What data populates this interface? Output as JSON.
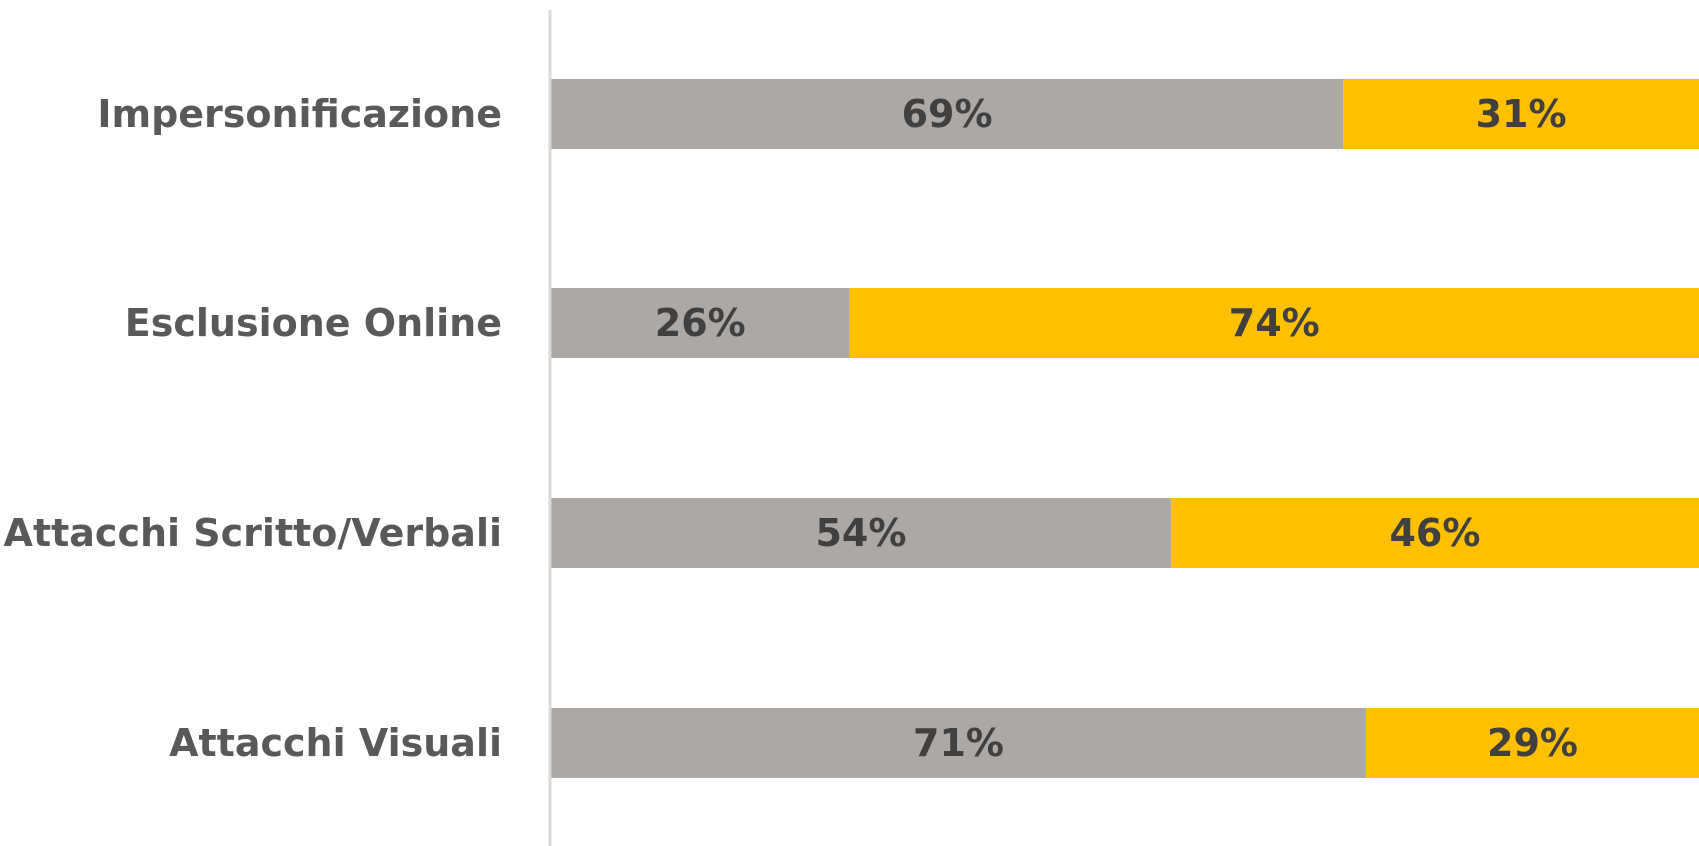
{
  "colors": {
    "series_1": "#ABA8A6",
    "series_2": "#FFC000",
    "axis_line": "#D9D9D9",
    "category_text": "#595959",
    "data_label_text": "#404040",
    "background": "#FFFFFF"
  },
  "chart_data": {
    "type": "bar",
    "orientation": "horizontal",
    "stacked": "percent",
    "categories": [
      "Impersonificazione",
      "Esclusione Online",
      "Attacchi Scritto/Verbali",
      "Attacchi Visuali"
    ],
    "series": [
      {
        "values": [
          69,
          26,
          54,
          71
        ],
        "labels": [
          "69%",
          "26%",
          "54%",
          "71%"
        ]
      },
      {
        "values": [
          31,
          74,
          46,
          29
        ],
        "labels": [
          "31%",
          "74%",
          "46%",
          "29%"
        ]
      }
    ],
    "xlim": [
      0,
      100
    ],
    "grid": false,
    "legend": "none"
  }
}
